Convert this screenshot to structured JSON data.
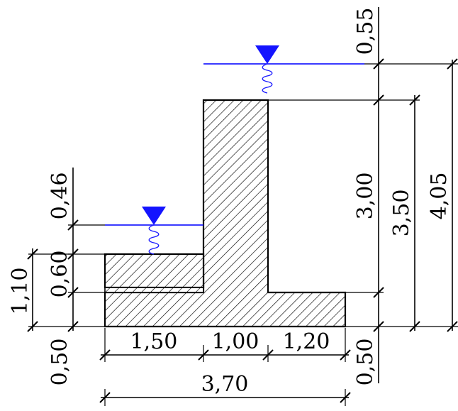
{
  "colors": {
    "water": "#1414ff",
    "structure_outline": "#000000",
    "hatch": "#000000",
    "background": "#ffffff"
  },
  "icons": {
    "water_level_symbol": "inverted-triangle-icon",
    "spring_symbol": "spring-icon"
  },
  "dimensions": {
    "bottom": {
      "left_width": "1,50",
      "wall_width": "1,00",
      "right_width": "1,20",
      "total_width": "3,70"
    },
    "left_side": {
      "water_above_fill": "0,46",
      "fill_height": "0,60",
      "footing_height": "0,50",
      "combined": "1,10"
    },
    "right_side": {
      "water_above_wall": "0,55",
      "wall_height": "3,00",
      "footing_height": "0,50",
      "wall_total": "3,50",
      "overall": "4,05"
    }
  }
}
